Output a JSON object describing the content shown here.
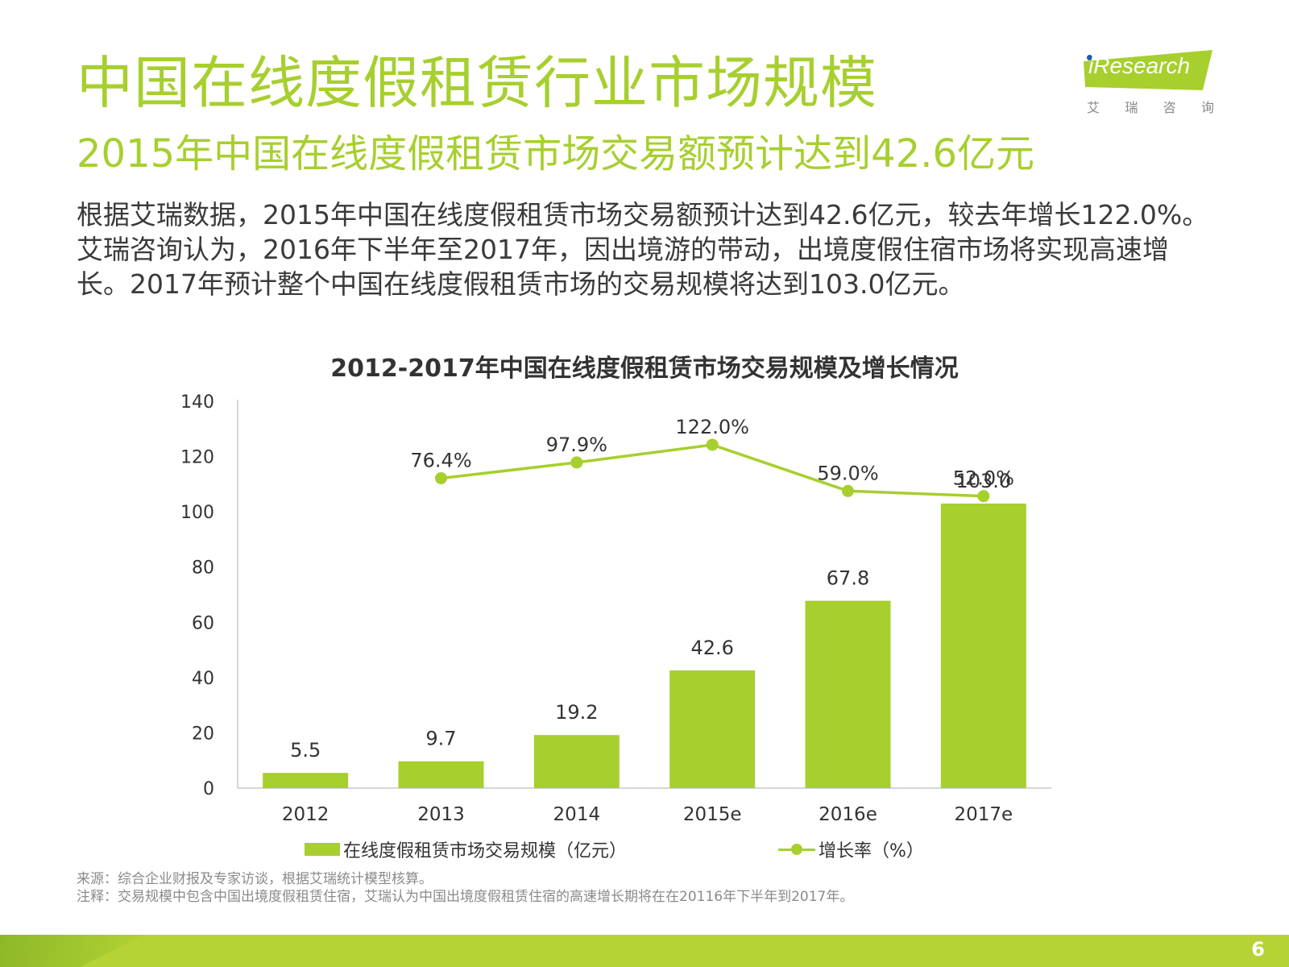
{
  "header": {
    "title": "中国在线度假租赁行业市场规模",
    "subtitle": "2015年中国在线度假租赁市场交易额预计达到42.6亿元"
  },
  "body_text": "根据艾瑞数据，2015年中国在线度假租赁市场交易额预计达到42.6亿元，较去年增长122.0%。艾瑞咨询认为，2016年下半年至2017年，因出境游的带动，出境度假住宿市场将实现高速增长。2017年预计整个中国在线度假租赁市场的交易规模将达到103.0亿元。",
  "logo": {
    "text": "iResearch",
    "cn_chars": [
      "艾",
      "瑞",
      "咨",
      "询"
    ],
    "banner_color": "#a7cf2e"
  },
  "chart_data": {
    "type": "bar",
    "title": "2012-2017年中国在线度假租赁市场交易规模及增长情况",
    "categories": [
      "2012",
      "2013",
      "2014",
      "2015e",
      "2016e",
      "2017e"
    ],
    "ylim": [
      0,
      140
    ],
    "yticks": [
      0,
      20,
      40,
      60,
      80,
      100,
      120,
      140
    ],
    "grid": false,
    "series": [
      {
        "name": "在线度假租赁市场交易规模（亿元）",
        "type": "bar",
        "values": [
          5.5,
          9.7,
          19.2,
          42.6,
          67.8,
          103.0
        ],
        "labels": [
          "5.5",
          "9.7",
          "19.2",
          "42.6",
          "67.8",
          "103.0"
        ],
        "color": "#a7cf2e"
      },
      {
        "name": "增长率（%）",
        "type": "line",
        "values": [
          null,
          76.4,
          97.9,
          122.0,
          59.0,
          52.0
        ],
        "labels": [
          "",
          "76.4%",
          "97.9%",
          "122.0%",
          "59.0%",
          "52.0%"
        ],
        "color": "#a7cf2e",
        "secondary_axis": true
      }
    ],
    "legend_position": "bottom"
  },
  "notes": {
    "source": "来源：综合企业财报及专家访谈，根据艾瑞统计模型核算。",
    "remark": "注释：交易规模中包含中国出境度假租赁住宿，艾瑞认为中国出境度假租赁住宿的高速增长期将在在20116年下半年到2017年。"
  },
  "footer": {
    "page_number": "6",
    "color": "#b5d334"
  }
}
